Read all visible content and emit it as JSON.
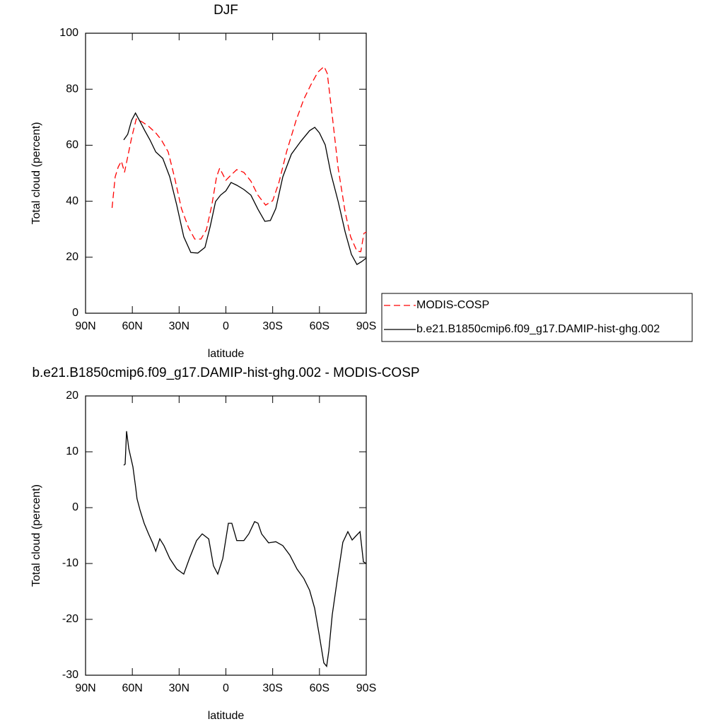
{
  "chart_data": [
    {
      "type": "line",
      "title": "DJF",
      "x_label": "latitude",
      "y_label": "Total cloud (percent)",
      "xlim": [
        90,
        -90
      ],
      "xticks": [
        {
          "value": 90,
          "label": "90N"
        },
        {
          "value": 60,
          "label": "60N"
        },
        {
          "value": 30,
          "label": "30N"
        },
        0,
        {
          "value": -30,
          "label": "30S"
        },
        {
          "value": -60,
          "label": "60S"
        },
        {
          "value": -90,
          "label": "90S"
        }
      ],
      "ylim": [
        0,
        100
      ],
      "yticks": [
        0,
        20,
        40,
        60,
        80,
        100
      ],
      "legend": "right",
      "series": [
        {
          "name": "MODIS-COSP",
          "color": "#ff0000",
          "dashed": true,
          "x": [
            73,
            71,
            69,
            67,
            65,
            64,
            60.5,
            57.5,
            54,
            50,
            45,
            41.5,
            37,
            33,
            28.5,
            24,
            20,
            16,
            12.5,
            9,
            6,
            4,
            0,
            -3,
            -7,
            -11.5,
            -16,
            -20.5,
            -25.5,
            -30,
            -34,
            -39,
            -45,
            -50,
            -54.5,
            -59,
            -63,
            -65,
            -68,
            -72,
            -76.5,
            -80,
            -84,
            -86.5,
            -88.5,
            -90
          ],
          "values": [
            37.6,
            48.7,
            52.3,
            54.3,
            50.3,
            53,
            62.6,
            69.4,
            68.4,
            67,
            64.4,
            62,
            57.6,
            48.7,
            37.4,
            30.6,
            26.5,
            26.5,
            29.8,
            38.6,
            48.7,
            51.8,
            47.5,
            49.2,
            51.3,
            50.3,
            47.2,
            42.2,
            38.6,
            40.2,
            46.7,
            57.8,
            68.9,
            76.5,
            81.6,
            86.1,
            88.1,
            85.6,
            71.5,
            51.8,
            36.1,
            27.3,
            22.2,
            22,
            28.5,
            29
          ]
        },
        {
          "name": "b.e21.B1850cmip6.f09_g17.DAMIP-hist-ghg.002",
          "color": "#000000",
          "dashed": false,
          "x": [
            65.5,
            63,
            60.5,
            58,
            55,
            52,
            48.7,
            45,
            40.5,
            36,
            31.5,
            27,
            22.5,
            18,
            13.4,
            10,
            6.6,
            3.4,
            0,
            -3.3,
            -7,
            -11.5,
            -16,
            -20.6,
            -25,
            -28.5,
            -32,
            -36.5,
            -42,
            -48,
            -53.7,
            -57,
            -60,
            -63.7,
            -67.3,
            -72,
            -76.5,
            -80.5,
            -84,
            -87,
            -90
          ],
          "values": [
            61.9,
            63.9,
            68.9,
            71.5,
            68.4,
            65.2,
            61.9,
            57.6,
            55.3,
            48.7,
            38.6,
            27.3,
            21.7,
            21.5,
            23.5,
            31.1,
            39.9,
            42.2,
            43.7,
            46.7,
            45.7,
            44.2,
            42.2,
            37.1,
            32.8,
            33.1,
            37.4,
            48.7,
            56.8,
            61.4,
            65.2,
            66.4,
            64.4,
            60.1,
            50,
            39.9,
            29,
            21,
            17.4,
            18.4,
            19.7
          ]
        }
      ]
    },
    {
      "type": "line",
      "title": "b.e21.B1850cmip6.f09_g17.DAMIP-hist-ghg.002 - MODIS-COSP",
      "x_label": "latitude",
      "y_label": "Total cloud (percent)",
      "xlim": [
        90,
        -90
      ],
      "xticks": [
        {
          "value": 90,
          "label": "90N"
        },
        {
          "value": 60,
          "label": "60N"
        },
        {
          "value": 30,
          "label": "30N"
        },
        0,
        {
          "value": -30,
          "label": "30S"
        },
        {
          "value": -60,
          "label": "60S"
        },
        {
          "value": -90,
          "label": "90S"
        }
      ],
      "ylim": [
        -30,
        20
      ],
      "yticks": [
        -30,
        -20,
        -10,
        0,
        10,
        20
      ],
      "series": [
        {
          "color": "#000000",
          "dashed": false,
          "x": [
            65.5,
            64.6,
            63.7,
            62.3,
            59.6,
            57.8,
            57,
            55,
            52.4,
            49.6,
            47,
            45,
            42.4,
            39.7,
            36,
            31.5,
            27,
            23.4,
            18.8,
            15.2,
            11,
            8,
            5.2,
            2,
            -1.6,
            -3.8,
            -7,
            -11.5,
            -14.7,
            -18.4,
            -20.6,
            -22.9,
            -27.4,
            -32,
            -36.5,
            -41,
            -45.6,
            -50,
            -53.7,
            -56.9,
            -60,
            -62.8,
            -64.6,
            -66,
            -68.2,
            -71.4,
            -75,
            -78.2,
            -81,
            -83.6,
            -86,
            -88.2,
            -90
          ],
          "values": [
            7.6,
            7.8,
            13.7,
            10.6,
            7.3,
            3.5,
            1.6,
            -0.5,
            -2.8,
            -4.7,
            -6.3,
            -7.8,
            -5.6,
            -6.8,
            -9.1,
            -11,
            -11.9,
            -9.1,
            -5.9,
            -4.7,
            -5.6,
            -10.4,
            -11.9,
            -9.1,
            -2.8,
            -2.8,
            -5.9,
            -5.9,
            -4.7,
            -2.5,
            -2.8,
            -4.7,
            -6.3,
            -6.1,
            -6.8,
            -8.5,
            -11,
            -12.7,
            -14.8,
            -18,
            -23,
            -27.8,
            -28.4,
            -25.6,
            -19.2,
            -12.9,
            -6.2,
            -4.3,
            -5.8,
            -5,
            -4.3,
            -9.7,
            -10
          ]
        }
      ]
    }
  ]
}
